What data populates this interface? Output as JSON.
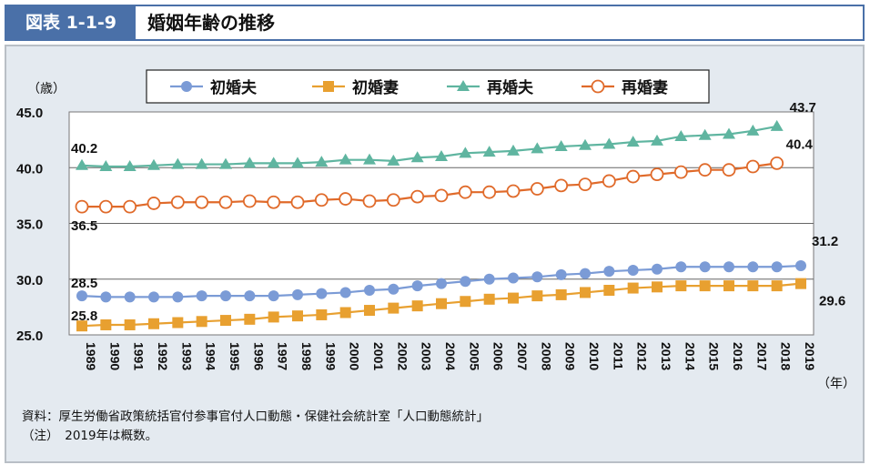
{
  "header": {
    "figure_number": "図表 1-1-9",
    "title": "婚姻年齢の推移"
  },
  "chart_data": {
    "type": "line",
    "title": "",
    "ylabel": "（歳）",
    "xlabel": "（年）",
    "ylim": [
      25.0,
      45.0
    ],
    "yticks": [
      "25.0",
      "30.0",
      "35.0",
      "40.0",
      "45.0"
    ],
    "grid": true,
    "legend": "top",
    "x": [
      1989,
      1990,
      1991,
      1992,
      1993,
      1994,
      1995,
      1996,
      1997,
      1998,
      1999,
      2000,
      2001,
      2002,
      2003,
      2004,
      2005,
      2006,
      2007,
      2008,
      2009,
      2010,
      2011,
      2012,
      2013,
      2014,
      2015,
      2016,
      2017,
      2018,
      2019
    ],
    "series": [
      {
        "name": "初婚夫",
        "color": "#7b9bd6",
        "marker": "circle",
        "values": [
          28.5,
          28.4,
          28.4,
          28.4,
          28.4,
          28.5,
          28.5,
          28.5,
          28.5,
          28.6,
          28.7,
          28.8,
          29.0,
          29.1,
          29.4,
          29.6,
          29.8,
          30.0,
          30.1,
          30.2,
          30.4,
          30.5,
          30.7,
          30.8,
          30.9,
          31.1,
          31.1,
          31.1,
          31.1,
          31.1,
          31.2
        ],
        "labels": [
          {
            "year": 1989,
            "text": "28.5"
          },
          {
            "year": 2019,
            "text": "31.2"
          }
        ]
      },
      {
        "name": "初婚妻",
        "color": "#e8a030",
        "marker": "square",
        "values": [
          25.8,
          25.9,
          25.9,
          26.0,
          26.1,
          26.2,
          26.3,
          26.4,
          26.6,
          26.7,
          26.8,
          27.0,
          27.2,
          27.4,
          27.6,
          27.8,
          28.0,
          28.2,
          28.3,
          28.5,
          28.6,
          28.8,
          29.0,
          29.2,
          29.3,
          29.4,
          29.4,
          29.4,
          29.4,
          29.4,
          29.6
        ],
        "labels": [
          {
            "year": 1989,
            "text": "25.8"
          },
          {
            "year": 2019,
            "text": "29.6"
          }
        ]
      },
      {
        "name": "再婚夫",
        "color": "#5fb5a0",
        "marker": "triangle",
        "values": [
          40.2,
          40.1,
          40.1,
          40.2,
          40.3,
          40.3,
          40.3,
          40.4,
          40.4,
          40.4,
          40.5,
          40.7,
          40.7,
          40.6,
          40.9,
          41.0,
          41.3,
          41.4,
          41.5,
          41.7,
          41.9,
          42.0,
          42.1,
          42.3,
          42.4,
          42.8,
          42.9,
          43.0,
          43.3,
          43.7,
          null
        ],
        "labels": [
          {
            "year": 1989,
            "text": "40.2"
          },
          {
            "year": 2018,
            "text": "43.7"
          }
        ]
      },
      {
        "name": "再婚妻",
        "color": "#e06a2a",
        "marker": "open-circle",
        "values": [
          36.5,
          36.5,
          36.5,
          36.8,
          36.9,
          36.9,
          36.9,
          37.0,
          36.9,
          36.9,
          37.1,
          37.2,
          37.0,
          37.1,
          37.4,
          37.5,
          37.8,
          37.8,
          37.9,
          38.1,
          38.4,
          38.5,
          38.8,
          39.2,
          39.4,
          39.6,
          39.8,
          39.8,
          40.1,
          40.4,
          null
        ],
        "labels": [
          {
            "year": 1989,
            "text": "36.5"
          },
          {
            "year": 2018,
            "text": "40.4"
          }
        ]
      }
    ]
  },
  "notes": {
    "source": "資料：厚生労働省政策統括官付参事官付人口動態・保健社会統計室「人口動態統計」",
    "note": "（注）　2019年は概数。"
  }
}
